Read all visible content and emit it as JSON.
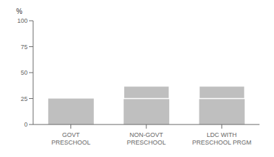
{
  "chart_data": {
    "type": "bar",
    "stacked": true,
    "ylabel": "%",
    "categories": [
      "GOVT PRESCHOOL",
      "NON-GOVT PRESCHOOL",
      "LDC WITH PRESCHOOL PRGM"
    ],
    "series": [
      {
        "color": "#bfbfbf",
        "values": [
          25,
          25,
          25
        ]
      },
      {
        "color": "#bfbfbf",
        "values": [
          0,
          12,
          12
        ]
      }
    ],
    "ylim": [
      0,
      100
    ],
    "yticks": [
      0,
      25,
      50,
      75,
      100
    ],
    "grid": false
  }
}
